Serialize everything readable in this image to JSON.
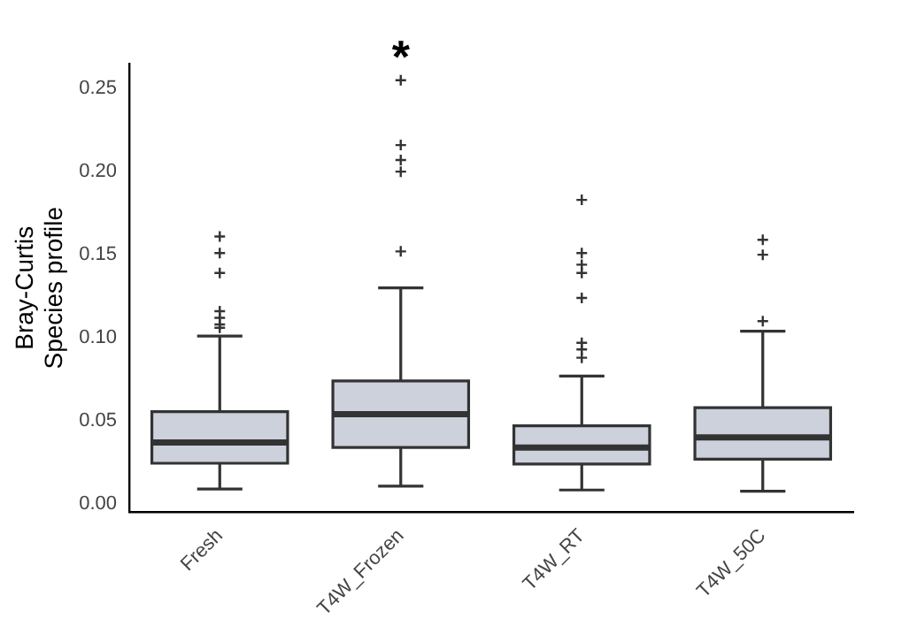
{
  "chart_data": {
    "type": "box",
    "ylabel": "Bray-Curtis\nSpecies profile",
    "categories": [
      "Fresh",
      "T4W_Frozen",
      "T4W_RT",
      "T4W_50C"
    ],
    "boxes": [
      {
        "low": 0.009,
        "q1": 0.0245,
        "median": 0.037,
        "q3": 0.0556,
        "high": 0.101,
        "outliers": [
          0.106,
          0.108,
          0.112,
          0.116,
          0.139,
          0.151,
          0.161
        ]
      },
      {
        "low": 0.0107,
        "q1": 0.034,
        "median": 0.054,
        "q3": 0.074,
        "high": 0.13,
        "outliers": [
          0.152,
          0.2,
          0.207,
          0.216,
          0.255
        ]
      },
      {
        "low": 0.0084,
        "q1": 0.024,
        "median": 0.034,
        "q3": 0.047,
        "high": 0.077,
        "outliers": [
          0.088,
          0.093,
          0.097,
          0.124,
          0.139,
          0.144,
          0.151,
          0.183
        ]
      },
      {
        "low": 0.0077,
        "q1": 0.027,
        "median": 0.04,
        "q3": 0.058,
        "high": 0.104,
        "outliers": [
          0.11,
          0.15,
          0.159
        ]
      }
    ],
    "color": "#cdd1dc",
    "marker": "cross",
    "grid": false,
    "legend": false,
    "ylim": [
      -0.005,
      0.265
    ],
    "yticks": [
      {
        "value": 0,
        "label": "0.00"
      },
      0.05,
      {
        "value": 0.1,
        "label": "0.10"
      },
      0.15,
      {
        "value": 0.2,
        "label": "0.20"
      },
      0.25
    ],
    "annotations": [
      "*"
    ]
  }
}
